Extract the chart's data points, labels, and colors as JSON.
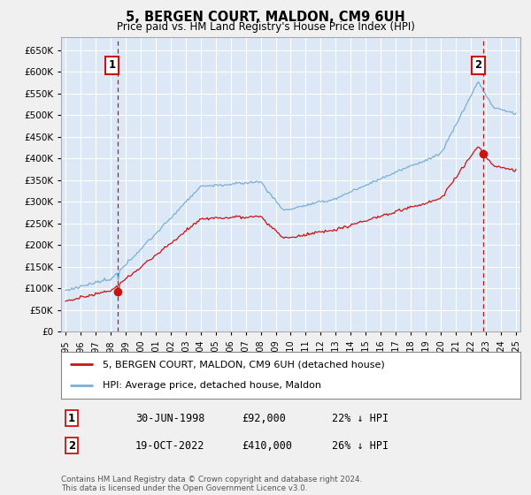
{
  "title": "5, BERGEN COURT, MALDON, CM9 6UH",
  "subtitle": "Price paid vs. HM Land Registry's House Price Index (HPI)",
  "ylim": [
    0,
    680000
  ],
  "yticks": [
    0,
    50000,
    100000,
    150000,
    200000,
    250000,
    300000,
    350000,
    400000,
    450000,
    500000,
    550000,
    600000,
    650000
  ],
  "xlim_start": 1994.7,
  "xlim_end": 2025.3,
  "bg_color": "#dce8f5",
  "grid_color": "#ffffff",
  "hpi_color": "#7aafd4",
  "sale_color": "#cc1111",
  "marker1_date": 1998.49,
  "marker1_price": 92000,
  "marker2_date": 2022.8,
  "marker2_price": 410000,
  "legend_label1": "5, BERGEN COURT, MALDON, CM9 6UH (detached house)",
  "legend_label2": "HPI: Average price, detached house, Maldon",
  "annotation1_label": "1",
  "annotation1_text1": "30-JUN-1998",
  "annotation1_text2": "£92,000",
  "annotation1_text3": "22% ↓ HPI",
  "annotation2_label": "2",
  "annotation2_text1": "19-OCT-2022",
  "annotation2_text2": "£410,000",
  "annotation2_text3": "26% ↓ HPI",
  "footer": "Contains HM Land Registry data © Crown copyright and database right 2024.\nThis data is licensed under the Open Government Licence v3.0."
}
